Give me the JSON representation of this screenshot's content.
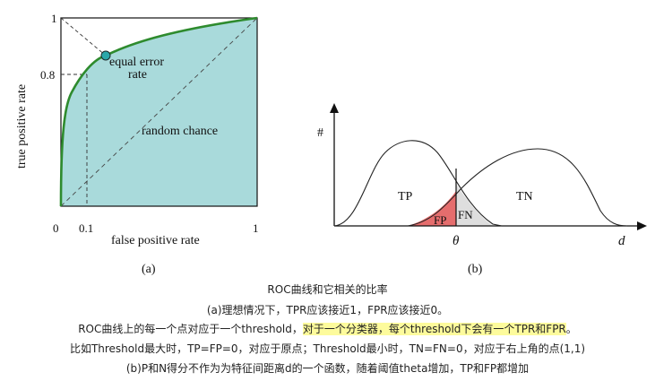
{
  "figure_a": {
    "y_axis_label": "true positive rate",
    "x_axis_label": "false positive rate",
    "tick_y_top": "1",
    "tick_y_08": "0.8",
    "tick_x_0": "0",
    "tick_x_01": "0.1",
    "tick_x_1": "1",
    "annotation_eer_line1": "equal error",
    "annotation_eer_line2": "rate",
    "annotation_random": "random chance",
    "panel_label": "(a)",
    "colors": {
      "area_fill": "#a9dadb",
      "roc_curve": "#2e8b2e",
      "eer_point": "#2aa7a9"
    }
  },
  "figure_b": {
    "y_axis_symbol": "#",
    "x_axis_symbol": "d",
    "threshold_symbol": "θ",
    "tp_label": "TP",
    "tn_label": "TN",
    "fp_label": "FP",
    "fn_label": "FN",
    "panel_label": "(b)",
    "colors": {
      "fp_fill": "#e56d6d",
      "fn_fill": "#c8c8c8"
    }
  },
  "caption": {
    "line1": "ROC曲线和它相关的比率",
    "line2": "(a)理想情况下，TPR应该接近1，FPR应该接近0。",
    "line3_plain": "ROC曲线上的每一个点对应于一个threshold，",
    "line3_highlight": "对于一个分类器，每个threshold下会有一个TPR和FPR",
    "line3_end": "。",
    "line4": "比如Threshold最大时，TP=FP=0，对应于原点；Threshold最小时，TN=FN=0，对应于右上角的点(1,1)",
    "line5": "(b)P和N得分不作为为特征间距离d的一个函数，随着阈值theta增加，TP和FP都增加",
    "highlight_color": "#fdfb9c"
  }
}
